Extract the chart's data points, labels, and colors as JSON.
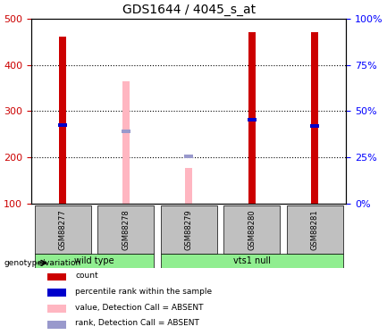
{
  "title": "GDS1644 / 4045_s_at",
  "samples": [
    "GSM88277",
    "GSM88278",
    "GSM88279",
    "GSM88280",
    "GSM88281"
  ],
  "groups": [
    {
      "name": "wild type",
      "samples": [
        "GSM88277",
        "GSM88278"
      ],
      "color": "#90EE90"
    },
    {
      "name": "vts1 null",
      "samples": [
        "GSM88279",
        "GSM88280",
        "GSM88281"
      ],
      "color": "#90EE90"
    }
  ],
  "red_bars": [
    460,
    0,
    0,
    470,
    470
  ],
  "pink_bars": [
    0,
    365,
    178,
    0,
    0
  ],
  "blue_squares": [
    270,
    0,
    0,
    282,
    268
  ],
  "light_blue_squares": [
    0,
    256,
    203,
    0,
    0
  ],
  "ylim_left": [
    100,
    500
  ],
  "ylim_right": [
    0,
    100
  ],
  "yticks_left": [
    100,
    200,
    300,
    400,
    500
  ],
  "yticks_right": [
    0,
    25,
    50,
    75,
    100
  ],
  "bar_width": 0.18,
  "red_color": "#CC0000",
  "pink_color": "#FFB6C1",
  "blue_color": "#0000CC",
  "light_blue_color": "#9999CC",
  "group_bar_color": "#90EE90",
  "sample_bg_color": "#C0C0C0",
  "grid_color": "#000000",
  "legend_items": [
    {
      "label": "count",
      "color": "#CC0000",
      "marker": "s"
    },
    {
      "label": "percentile rank within the sample",
      "color": "#0000CC",
      "marker": "s"
    },
    {
      "label": "value, Detection Call = ABSENT",
      "color": "#FFB6C1",
      "marker": "s"
    },
    {
      "label": "rank, Detection Call = ABSENT",
      "color": "#9999CC",
      "marker": "s"
    }
  ]
}
